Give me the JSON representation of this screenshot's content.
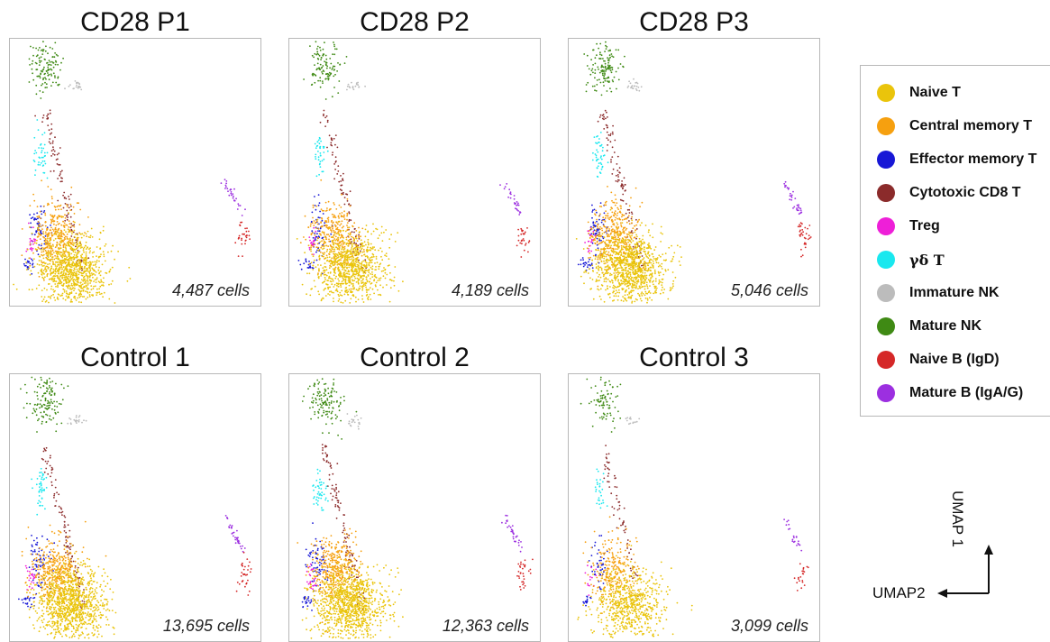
{
  "legend": [
    {
      "label": "Naive T",
      "color": "#eac40b"
    },
    {
      "label": "Central memory T",
      "color": "#f6a00f"
    },
    {
      "label": "Effector memory T",
      "color": "#1717d6"
    },
    {
      "label": "Cytotoxic CD8 T",
      "color": "#8b2b2b"
    },
    {
      "label": "Treg",
      "color": "#ee1fd8"
    },
    {
      "label": "γδ T",
      "color": "#19e8ef"
    },
    {
      "label": "Immature NK",
      "color": "#bcbcbc"
    },
    {
      "label": "Mature NK",
      "color": "#3f8a14"
    },
    {
      "label": "Naive B (IgD)",
      "color": "#d52828"
    },
    {
      "label": "Mature B (IgA/G)",
      "color": "#9c2fe0"
    }
  ],
  "axes": {
    "x_label": "UMAP2",
    "y_label": "UMAP 1"
  },
  "chart_data": [
    {
      "type": "scatter",
      "title": "CD28 P1",
      "cell_count": "4,487 cells",
      "total_cells": 4487
    },
    {
      "type": "scatter",
      "title": "CD28 P2",
      "cell_count": "4,189 cells",
      "total_cells": 4189
    },
    {
      "type": "scatter",
      "title": "CD28 P3",
      "cell_count": "5,046 cells",
      "total_cells": 5046
    },
    {
      "type": "scatter",
      "title": "Control 1",
      "cell_count": "13,695 cells",
      "total_cells": 13695
    },
    {
      "type": "scatter",
      "title": "Control 2",
      "cell_count": "12,363 cells",
      "total_cells": 12363
    },
    {
      "type": "scatter",
      "title": "Control 3",
      "cell_count": "3,099 cells",
      "total_cells": 3099
    }
  ]
}
